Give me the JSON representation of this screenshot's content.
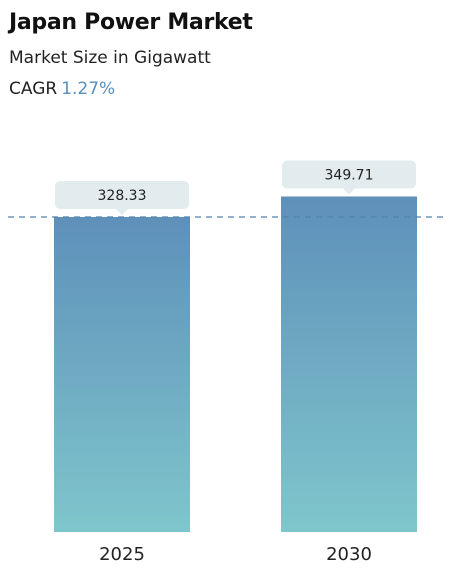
{
  "header": {
    "title": "Japan Power Market",
    "subtitle": "Market Size in Gigawatt",
    "cagr_label": "CAGR",
    "cagr_value": "1.27%"
  },
  "colors": {
    "bar_top": "#5e90ba",
    "bar_bottom": "#7fc6cc",
    "callout_bg": "#e2ecef",
    "dashed_line": "#4f82ad"
  },
  "chart_data": {
    "type": "bar",
    "title": "Japan Power Market",
    "subtitle": "Market Size in Gigawatt",
    "categories": [
      "2025",
      "2030"
    ],
    "values": [
      328.33,
      349.71
    ],
    "value_labels": [
      "328.33",
      "349.71"
    ],
    "xlabel": "",
    "ylabel": "",
    "grid": false,
    "legend": "none",
    "reference_line": {
      "style": "dashed",
      "value": 328.33
    }
  }
}
